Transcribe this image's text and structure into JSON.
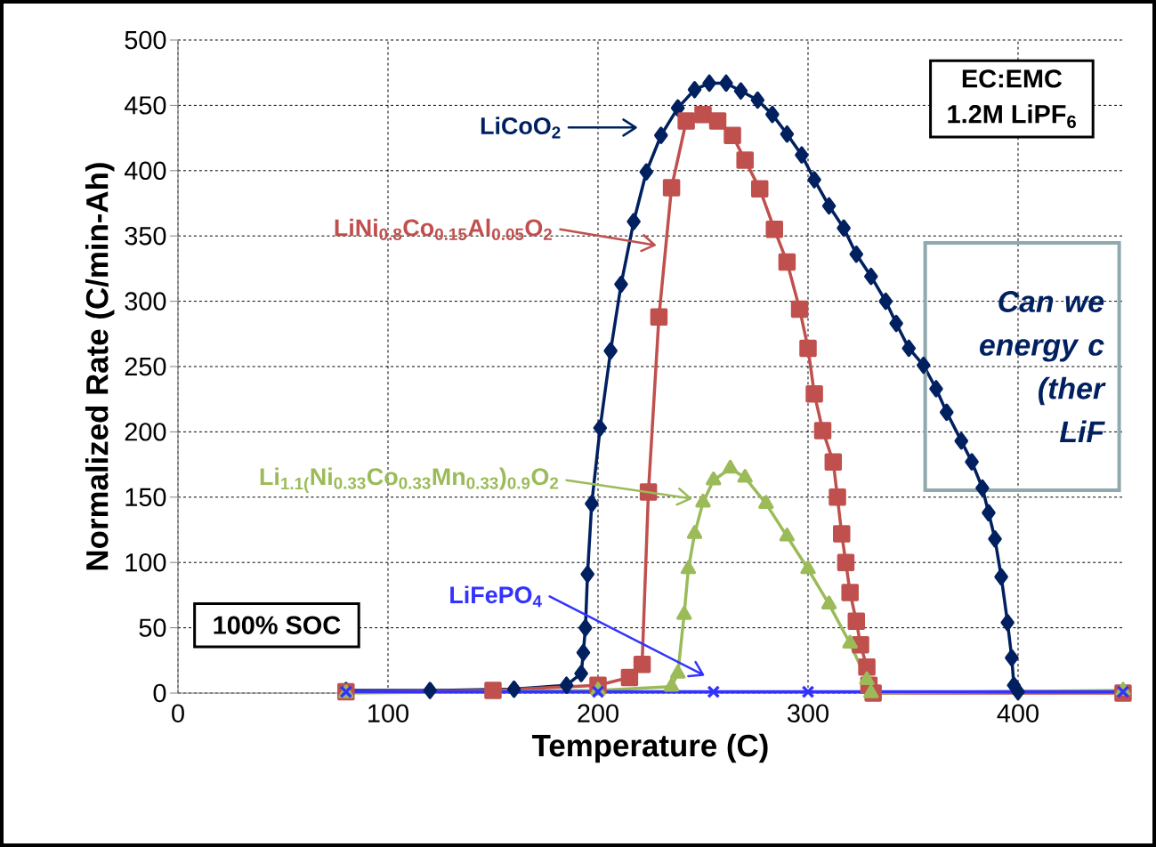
{
  "chart_data": {
    "type": "line",
    "xlabel": "Temperature (C)",
    "ylabel": "Normalized Rate (C/min-Ah)",
    "xlim": [
      0,
      450
    ],
    "xticks": [
      0,
      100,
      200,
      300,
      400
    ],
    "ylim": [
      0,
      500
    ],
    "yticks": [
      0,
      50,
      100,
      150,
      200,
      250,
      300,
      350,
      400,
      450,
      500
    ],
    "grid": true,
    "legend": "left",
    "series": [
      {
        "name": "LiCoO$_{2}$",
        "color": "#002060",
        "marker": "diamond",
        "x": [
          80,
          120,
          160,
          185,
          192,
          193,
          194,
          195,
          197,
          201,
          206,
          211,
          217,
          223,
          230,
          238,
          246,
          253,
          261,
          268,
          276,
          283,
          290,
          297,
          303,
          310,
          317,
          323,
          330,
          337,
          342,
          348,
          355,
          361,
          366,
          373,
          378,
          383,
          386,
          389,
          392,
          395,
          397,
          398,
          400,
          450
        ],
        "values": [
          2,
          2,
          3,
          6,
          15,
          31,
          50,
          91,
          145,
          203,
          262,
          313,
          361,
          399,
          427,
          448,
          462,
          467,
          467,
          461,
          454,
          443,
          428,
          412,
          393,
          373,
          356,
          336,
          319,
          300,
          283,
          264,
          251,
          233,
          215,
          193,
          177,
          157,
          138,
          118,
          89,
          54,
          27,
          6,
          1,
          1
        ]
      },
      {
        "name": "LiNi$_{0.8}$Co$_{0.15}$Al$_{0.05}$O$_{2}$",
        "color": "#c0504d",
        "marker": "square",
        "x": [
          80,
          150,
          200,
          215,
          221,
          224,
          229,
          235,
          242,
          250,
          257,
          264,
          270,
          277,
          284,
          290,
          296,
          300,
          303,
          307,
          312,
          314,
          316,
          318,
          320,
          323,
          325,
          328,
          329,
          331,
          450
        ],
        "values": [
          1,
          2,
          6,
          12,
          22,
          154,
          288,
          387,
          438,
          443,
          438,
          427,
          408,
          386,
          355,
          330,
          294,
          264,
          229,
          201,
          177,
          150,
          122,
          100,
          77,
          55,
          37,
          20,
          6,
          0,
          0
        ]
      },
      {
        "name": "Li$_{1.1(}$Ni$_{0.33}$Co$_{0.33}$Mn$_{0.33}$)$_{0.9}$O$_{2}$",
        "color": "#9bbb59",
        "marker": "triangle",
        "x": [
          80,
          200,
          235,
          238,
          241,
          243,
          246,
          250,
          255,
          263,
          270,
          280,
          290,
          300,
          310,
          320,
          328,
          330,
          450
        ],
        "values": [
          0,
          2,
          5,
          15,
          60,
          95,
          122,
          146,
          163,
          172,
          165,
          145,
          120,
          95,
          68,
          38,
          10,
          0,
          2
        ]
      },
      {
        "name": "LiFePO$_{4}$",
        "color": "#3333ff",
        "marker": "cross",
        "x": [
          80,
          200,
          255,
          300,
          450
        ],
        "values": [
          1,
          1,
          1,
          1,
          1
        ]
      }
    ],
    "annotations": [
      "EC:EMC",
      "1.2M LiPF$_{6}$",
      "100% SOC",
      "Can we",
      "energy c",
      "(ther",
      "LiF"
    ]
  }
}
